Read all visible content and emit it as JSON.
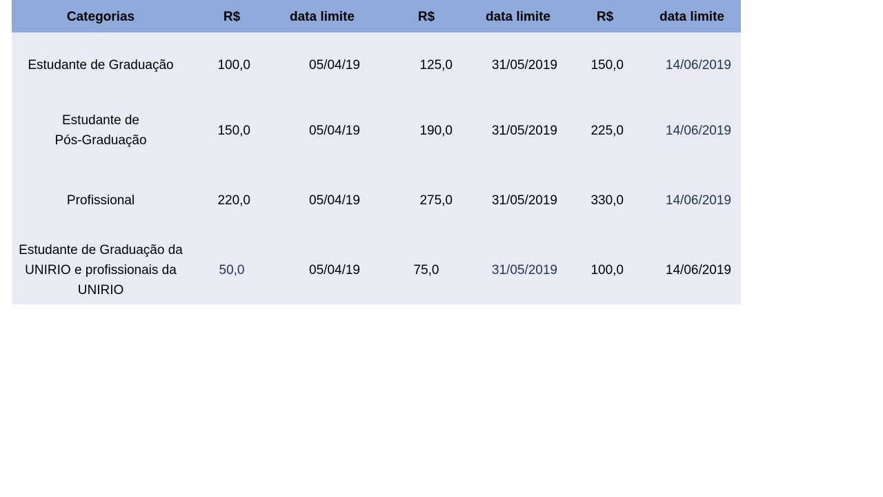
{
  "header": [
    "Categorias",
    "R$",
    "data limite",
    "R$",
    "data limite",
    "R$",
    "data limite"
  ],
  "colors": {
    "header_bg": "#8eaadb",
    "body_bg": "#e8ebf4",
    "alt_text": "#243650"
  },
  "rows": [
    {
      "cells": [
        {
          "text": "Estudante de Graduação",
          "tone": "black"
        },
        {
          "text": "100,0",
          "tone": "black"
        },
        {
          "text": "05/04/19",
          "tone": "black"
        },
        {
          "text": "125,0",
          "tone": "black"
        },
        {
          "text": "31/05/2019",
          "tone": "black"
        },
        {
          "text": "150,0",
          "tone": "black"
        },
        {
          "text": "14/06/2019",
          "tone": "blue"
        }
      ]
    },
    {
      "cells": [
        {
          "text": "Estudante de Pós-Graduação",
          "tone": "black"
        },
        {
          "text": "150,0",
          "tone": "black"
        },
        {
          "text": "05/04/19",
          "tone": "black"
        },
        {
          "text": "190,0",
          "tone": "black"
        },
        {
          "text": "31/05/2019",
          "tone": "black"
        },
        {
          "text": "225,0",
          "tone": "black"
        },
        {
          "text": "14/06/2019",
          "tone": "blue"
        }
      ]
    },
    {
      "cells": [
        {
          "text": "Profissional",
          "tone": "black"
        },
        {
          "text": "220,0",
          "tone": "black"
        },
        {
          "text": "05/04/19",
          "tone": "black"
        },
        {
          "text": "275,0",
          "tone": "black"
        },
        {
          "text": "31/05/2019",
          "tone": "black"
        },
        {
          "text": "330,0",
          "tone": "black"
        },
        {
          "text": "14/06/2019",
          "tone": "blue"
        }
      ]
    },
    {
      "cells": [
        {
          "text": "Estudante de Graduação da UNIRIO e profissionais da UNIRIO",
          "tone": "black"
        },
        {
          "text": "50,0",
          "tone": "blue"
        },
        {
          "text": "05/04/19",
          "tone": "black"
        },
        {
          "text": "75,0",
          "tone": "black"
        },
        {
          "text": "31/05/2019",
          "tone": "blue"
        },
        {
          "text": "100,0",
          "tone": "black"
        },
        {
          "text": "14/06/2019",
          "tone": "black"
        }
      ]
    }
  ]
}
